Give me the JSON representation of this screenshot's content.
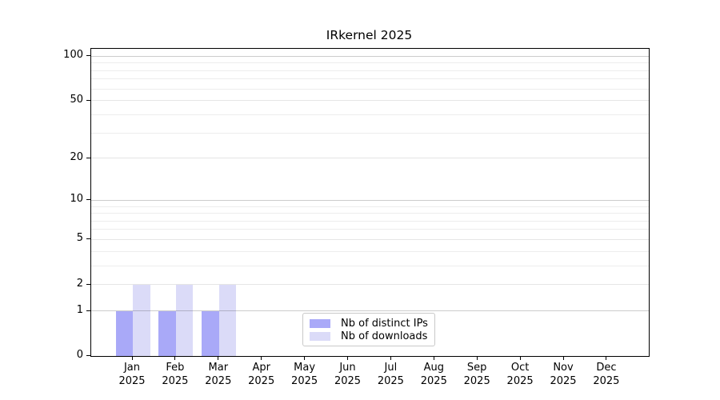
{
  "title": "IRkernel 2025",
  "chart_data": {
    "type": "bar",
    "title": "IRkernel 2025",
    "year": "2025",
    "months": [
      "Jan",
      "Feb",
      "Mar",
      "Apr",
      "May",
      "Jun",
      "Jul",
      "Aug",
      "Sep",
      "Oct",
      "Nov",
      "Dec"
    ],
    "categories": [
      "Jan 2025",
      "Feb 2025",
      "Mar 2025",
      "Apr 2025",
      "May 2025",
      "Jun 2025",
      "Jul 2025",
      "Aug 2025",
      "Sep 2025",
      "Oct 2025",
      "Nov 2025",
      "Dec 2025"
    ],
    "series": [
      {
        "name": "Nb of distinct IPs",
        "color": "#a9a9f8",
        "values": [
          1,
          1,
          1,
          0,
          0,
          0,
          0,
          0,
          0,
          0,
          0,
          0
        ]
      },
      {
        "name": "Nb of downloads",
        "color": "#dbdbf8",
        "values": [
          2,
          2,
          2,
          0,
          0,
          0,
          0,
          0,
          0,
          0,
          0,
          0
        ]
      }
    ],
    "y_axis": {
      "scale": "log10(1+v)",
      "tick_values": [
        0,
        1,
        2,
        5,
        10,
        20,
        50,
        100
      ],
      "tick_labels": [
        "0",
        "1",
        "2",
        "5",
        "10",
        "20",
        "50",
        "100"
      ],
      "range_max": 116
    },
    "grid": {
      "minor_values": [
        3,
        4,
        6,
        7,
        8,
        9,
        30,
        40,
        60,
        70,
        80,
        90
      ],
      "labeled_minor_values": [
        2,
        5,
        20,
        50
      ],
      "major_values": [
        1,
        10,
        100
      ],
      "minor_color": "rgba(0,0,0,0.07)",
      "labeled_minor_color": "rgba(0,0,0,0.10)",
      "major_color": "rgba(0,0,0,0.20)"
    },
    "legend": {
      "position": "lower center inside"
    },
    "axis_color": "#000000",
    "background_color": "#ffffff"
  }
}
